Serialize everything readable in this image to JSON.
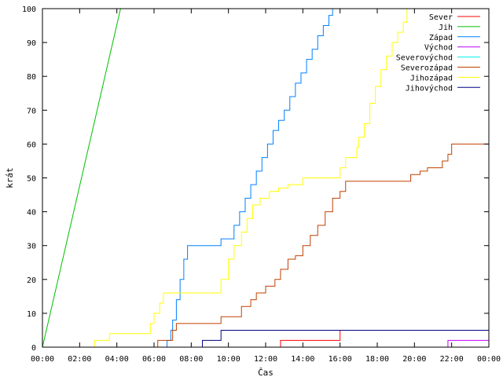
{
  "chart_data": {
    "type": "line",
    "xlabel": "Čas",
    "ylabel": "krát",
    "xlim": [
      0,
      24
    ],
    "ylim": [
      0,
      100
    ],
    "x_ticks": [
      "00:00",
      "02:00",
      "04:00",
      "06:00",
      "08:00",
      "10:00",
      "12:00",
      "14:00",
      "16:00",
      "18:00",
      "20:00",
      "22:00",
      "00:00"
    ],
    "y_ticks": [
      0,
      10,
      20,
      30,
      40,
      50,
      60,
      70,
      80,
      90,
      100
    ],
    "grid": false,
    "legend_position": "top-right",
    "series": [
      {
        "name": "Sever",
        "color": "#ff0000",
        "step": true,
        "points": [
          [
            0,
            0
          ],
          [
            12.8,
            0
          ],
          [
            12.8,
            2
          ],
          [
            16,
            2
          ],
          [
            16,
            5
          ],
          [
            24,
            5
          ]
        ]
      },
      {
        "name": "Jih",
        "color": "#00c000",
        "step": false,
        "points": [
          [
            0,
            0
          ],
          [
            4.2,
            100
          ]
        ]
      },
      {
        "name": "Západ",
        "color": "#0080ff",
        "step": true,
        "points": [
          [
            0,
            0
          ],
          [
            6.6,
            0
          ],
          [
            6.7,
            2
          ],
          [
            6.9,
            5
          ],
          [
            7,
            8
          ],
          [
            7.2,
            14
          ],
          [
            7.4,
            20
          ],
          [
            7.6,
            26
          ],
          [
            7.8,
            30
          ],
          [
            9.5,
            30
          ],
          [
            9.6,
            32
          ],
          [
            10,
            32
          ],
          [
            10.3,
            36
          ],
          [
            10.6,
            40
          ],
          [
            10.9,
            44
          ],
          [
            11.2,
            48
          ],
          [
            11.5,
            52
          ],
          [
            11.8,
            56
          ],
          [
            12.1,
            60
          ],
          [
            12.4,
            64
          ],
          [
            12.7,
            67
          ],
          [
            13,
            70
          ],
          [
            13.3,
            74
          ],
          [
            13.6,
            78
          ],
          [
            13.9,
            81
          ],
          [
            14.2,
            85
          ],
          [
            14.5,
            88
          ],
          [
            14.8,
            92
          ],
          [
            15.1,
            95
          ],
          [
            15.4,
            98
          ],
          [
            15.6,
            100
          ],
          [
            24,
            100
          ]
        ]
      },
      {
        "name": "Východ",
        "color": "#c000ff",
        "step": true,
        "points": [
          [
            0,
            0
          ],
          [
            21.8,
            0
          ],
          [
            21.8,
            2
          ],
          [
            24,
            2
          ]
        ]
      },
      {
        "name": "Severovýchod",
        "color": "#00eeee",
        "step": true,
        "points": [
          [
            0,
            0
          ],
          [
            24,
            0
          ]
        ]
      },
      {
        "name": "Severozápad",
        "color": "#c04000",
        "step": true,
        "points": [
          [
            0,
            0
          ],
          [
            6.2,
            0
          ],
          [
            6.2,
            2
          ],
          [
            6.9,
            2
          ],
          [
            7,
            5
          ],
          [
            7.2,
            7
          ],
          [
            9.5,
            7
          ],
          [
            9.6,
            9
          ],
          [
            10.5,
            9
          ],
          [
            10.7,
            12
          ],
          [
            11.2,
            14
          ],
          [
            11.5,
            16
          ],
          [
            12,
            18
          ],
          [
            12.5,
            20
          ],
          [
            12.8,
            23
          ],
          [
            13.2,
            26
          ],
          [
            13.6,
            27
          ],
          [
            14,
            30
          ],
          [
            14.4,
            33
          ],
          [
            14.8,
            36
          ],
          [
            15.2,
            40
          ],
          [
            15.6,
            44
          ],
          [
            16,
            46
          ],
          [
            16.3,
            49
          ],
          [
            19.5,
            49
          ],
          [
            19.8,
            51
          ],
          [
            20.3,
            52
          ],
          [
            20.7,
            53
          ],
          [
            21.5,
            55
          ],
          [
            21.8,
            57
          ],
          [
            22,
            60
          ],
          [
            24,
            60
          ]
        ]
      },
      {
        "name": "Jihozápad",
        "color": "#ffff00",
        "step": true,
        "points": [
          [
            0,
            0
          ],
          [
            2.7,
            0
          ],
          [
            2.8,
            2
          ],
          [
            3.5,
            2
          ],
          [
            3.6,
            4
          ],
          [
            5.6,
            4
          ],
          [
            5.8,
            7
          ],
          [
            6,
            10
          ],
          [
            6.3,
            13
          ],
          [
            6.5,
            16
          ],
          [
            9.5,
            16
          ],
          [
            9.6,
            20
          ],
          [
            10,
            26
          ],
          [
            10.3,
            30
          ],
          [
            10.7,
            34
          ],
          [
            11,
            38
          ],
          [
            11.3,
            42
          ],
          [
            11.7,
            44
          ],
          [
            12.2,
            46
          ],
          [
            12.7,
            47
          ],
          [
            13.2,
            48
          ],
          [
            14,
            50
          ],
          [
            15.8,
            50
          ],
          [
            16,
            53
          ],
          [
            16.3,
            56
          ],
          [
            16.9,
            59
          ],
          [
            17,
            62
          ],
          [
            17.3,
            66
          ],
          [
            17.6,
            72
          ],
          [
            17.9,
            77
          ],
          [
            18.2,
            82
          ],
          [
            18.5,
            86
          ],
          [
            18.8,
            90
          ],
          [
            19.1,
            93
          ],
          [
            19.4,
            96
          ],
          [
            19.6,
            100
          ],
          [
            24,
            100
          ]
        ]
      },
      {
        "name": "Jihovýchod",
        "color": "#000080",
        "step": true,
        "points": [
          [
            0,
            0
          ],
          [
            8.6,
            0
          ],
          [
            8.6,
            2
          ],
          [
            9.5,
            2
          ],
          [
            9.6,
            5
          ],
          [
            24,
            5
          ]
        ]
      }
    ]
  }
}
